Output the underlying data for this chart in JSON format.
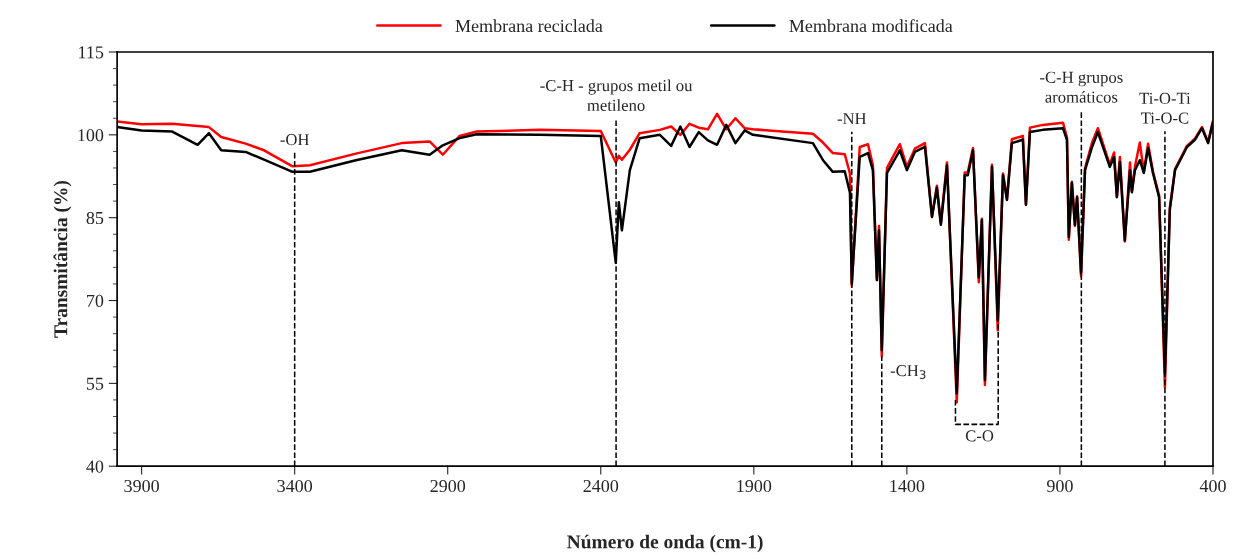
{
  "chart_data": {
    "type": "line",
    "xlabel": "Número de onda (cm-1)",
    "ylabel": "Transmitância (%)",
    "x": [
      3980,
      3900,
      3800,
      3717,
      3680,
      3640,
      3560,
      3500,
      3407,
      3350,
      3200,
      3050,
      2959,
      2916,
      2861,
      2805,
      2600,
      2400,
      2351,
      2341,
      2331,
      2305,
      2273,
      2207,
      2170,
      2140,
      2110,
      2080,
      2050,
      2020,
      1990,
      1960,
      1930,
      1903,
      1707,
      1674,
      1642,
      1603,
      1586,
      1580,
      1554,
      1527,
      1511,
      1498,
      1491,
      1482,
      1465,
      1423,
      1400,
      1374,
      1341,
      1318,
      1302,
      1289,
      1269,
      1237,
      1211,
      1201,
      1184,
      1165,
      1155,
      1145,
      1122,
      1103,
      1086,
      1073,
      1057,
      1021,
      1011,
      998,
      956,
      890,
      877,
      871,
      861,
      851,
      844,
      831,
      818,
      795,
      776,
      737,
      723,
      714,
      704,
      688,
      671,
      665,
      655,
      639,
      626,
      612,
      596,
      576,
      557,
      541,
      524,
      485,
      459,
      436,
      416,
      400
    ],
    "series": [
      {
        "name": "Membrana reciclada",
        "color": "#ff0000",
        "values": [
          102.4,
          101.9,
          102.0,
          101.6,
          101.4,
          99.6,
          98.4,
          97.2,
          94.3,
          94.5,
          96.6,
          98.5,
          98.8,
          96.4,
          99.8,
          100.6,
          100.9,
          100.7,
          95.0,
          96.2,
          95.5,
          97.3,
          100.3,
          100.9,
          101.5,
          100.0,
          102.0,
          101.3,
          101.0,
          103.8,
          101.0,
          103.0,
          101.2,
          101.0,
          100.2,
          98.6,
          96.7,
          96.5,
          93.0,
          72.7,
          97.8,
          98.3,
          94.5,
          74.0,
          83.5,
          59.9,
          94.0,
          98.3,
          94.2,
          97.5,
          98.5,
          85.3,
          90.8,
          84.0,
          95.0,
          51.6,
          93.2,
          93.2,
          97.6,
          73.3,
          84.8,
          54.7,
          94.6,
          64.6,
          93.0,
          88.4,
          99.2,
          99.8,
          87.5,
          101.3,
          101.8,
          102.2,
          99.5,
          81.0,
          91.5,
          83.5,
          88.9,
          74.4,
          94.0,
          98.6,
          101.2,
          94.6,
          96.8,
          88.9,
          96.0,
          80.7,
          95.0,
          89.8,
          94.2,
          98.6,
          93.3,
          98.4,
          93.3,
          89.0,
          54.3,
          86.8,
          93.8,
          98.0,
          99.3,
          101.4,
          98.7,
          102.5
        ]
      },
      {
        "name": "Membrana modificada",
        "color": "#000000",
        "values": [
          101.4,
          100.8,
          100.6,
          98.2,
          100.3,
          97.2,
          96.9,
          95.5,
          93.3,
          93.3,
          95.4,
          97.2,
          96.4,
          98.1,
          99.4,
          100.1,
          100.0,
          99.8,
          76.8,
          87.8,
          82.7,
          93.6,
          99.4,
          100.0,
          98.0,
          101.5,
          97.8,
          100.5,
          99.0,
          98.2,
          101.8,
          98.5,
          100.8,
          100.0,
          98.5,
          95.4,
          93.3,
          93.4,
          89.5,
          73.1,
          96.0,
          96.7,
          93.6,
          73.7,
          82.7,
          61.0,
          93.1,
          97.2,
          93.6,
          96.9,
          97.8,
          85.1,
          90.4,
          83.7,
          94.5,
          53.2,
          92.7,
          92.7,
          97.2,
          74.2,
          84.6,
          55.6,
          94.2,
          66.4,
          92.7,
          88.2,
          98.5,
          99.1,
          87.3,
          100.5,
          100.9,
          101.2,
          99.1,
          81.5,
          91.3,
          83.7,
          88.7,
          75.0,
          93.6,
          97.8,
          100.5,
          94.2,
          96.0,
          88.7,
          95.1,
          80.9,
          93.6,
          89.6,
          93.6,
          95.4,
          93.1,
          97.6,
          93.1,
          88.7,
          56.8,
          86.4,
          93.6,
          97.8,
          99.1,
          101.2,
          98.5,
          102.3
        ]
      }
    ],
    "xlim": [
      3980,
      400
    ],
    "xticks": [
      3900,
      3400,
      2900,
      2400,
      1900,
      1400,
      900,
      400
    ],
    "ylim": [
      40,
      115
    ],
    "yticks": [
      40,
      55,
      70,
      85,
      100,
      115
    ],
    "legend": "top",
    "grid": false,
    "ref_lines": [
      {
        "axis": "x",
        "value": 3400,
        "line_style": "dashed",
        "color": "#000000",
        "label": "-OH"
      },
      {
        "axis": "x",
        "value": 2350,
        "line_style": "dashed",
        "color": "#000000",
        "label": "-C-H - grupos metil ou\nmetileno"
      },
      {
        "axis": "x",
        "value": 1580,
        "line_style": "dashed",
        "color": "#000000",
        "label": "-NH"
      },
      {
        "axis": "x",
        "value": 1482,
        "line_style": "dashed",
        "color": "#000000",
        "label": "-CH$_{3}$"
      },
      {
        "axis": "x",
        "value": 830,
        "line_style": "dashed",
        "color": "#000000",
        "label": "-C-H grupos\naromáticos"
      },
      {
        "axis": "x",
        "value": 557,
        "line_style": "dashed",
        "color": "#000000",
        "label": "Ti-O-Ti\nTi-O-C"
      }
    ],
    "annotations": [
      "C-O"
    ]
  }
}
